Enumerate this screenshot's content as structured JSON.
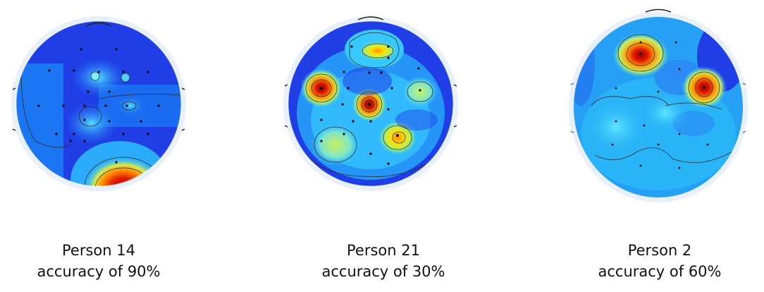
{
  "panels": [
    {
      "person": "Person 14",
      "accuracy": "accuracy of 90%"
    },
    {
      "person": "Person 21",
      "accuracy": "accuracy of 30%"
    },
    {
      "person": "Person 2",
      "accuracy": "accuracy of 60%"
    }
  ],
  "colors": {
    "background": "#1428d8",
    "low": "#1e4ff0",
    "mid": "#2ec8ff",
    "mid_high": "#b8f56a",
    "high": "#ffd000",
    "peak": "#d40000",
    "rim": "#e8f0fb",
    "contour": "#2b2b2b"
  }
}
